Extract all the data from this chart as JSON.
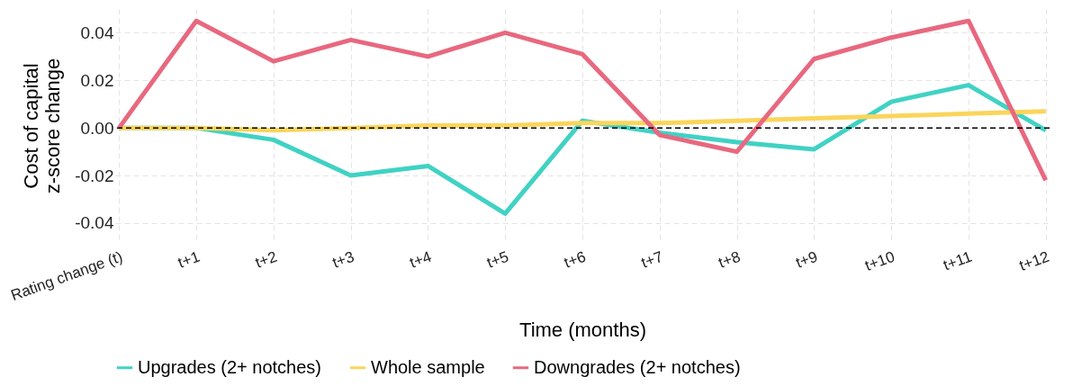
{
  "chart_data": {
    "type": "line",
    "xlabel": "Time (months)",
    "ylabel": "Cost of capital\nz-score change",
    "categories": [
      "Rating change (t)",
      "t+1",
      "t+2",
      "t+3",
      "t+4",
      "t+5",
      "t+6",
      "t+7",
      "t+8",
      "t+9",
      "t+10",
      "t+11",
      "t+12"
    ],
    "series": [
      {
        "name": "Upgrades (2+ notches)",
        "color": "#40d2c4",
        "values": [
          0,
          0,
          -0.005,
          -0.02,
          -0.016,
          -0.036,
          0.003,
          -0.002,
          -0.006,
          -0.009,
          0.011,
          0.018,
          -0.001
        ]
      },
      {
        "name": "Whole sample",
        "color": "#fad55c",
        "values": [
          0,
          0,
          -0.001,
          0,
          0.001,
          0.001,
          0.002,
          0.002,
          0.003,
          0.004,
          0.005,
          0.006,
          0.007
        ]
      },
      {
        "name": "Downgrades (2+ notches)",
        "color": "#e8687f",
        "values": [
          0,
          0.045,
          0.028,
          0.037,
          0.03,
          0.04,
          0.031,
          -0.003,
          -0.01,
          0.029,
          0.038,
          0.045,
          -0.022
        ]
      }
    ],
    "ylim": [
      -0.048,
      0.05
    ],
    "yticks": [
      {
        "value": -0.04,
        "label": "-0.04"
      },
      {
        "value": -0.02,
        "label": "-0.02"
      },
      {
        "value": 0,
        "label": "0.00"
      },
      {
        "value": 0.02,
        "label": "0.02"
      },
      {
        "value": 0.04,
        "label": "0.04"
      }
    ],
    "ref_lines": [
      {
        "axis": "y",
        "value": 0,
        "color": "#000000",
        "line_style": "dashed"
      }
    ],
    "grid": true,
    "legend": "bottom",
    "line_style": "solid",
    "marker": "none"
  }
}
